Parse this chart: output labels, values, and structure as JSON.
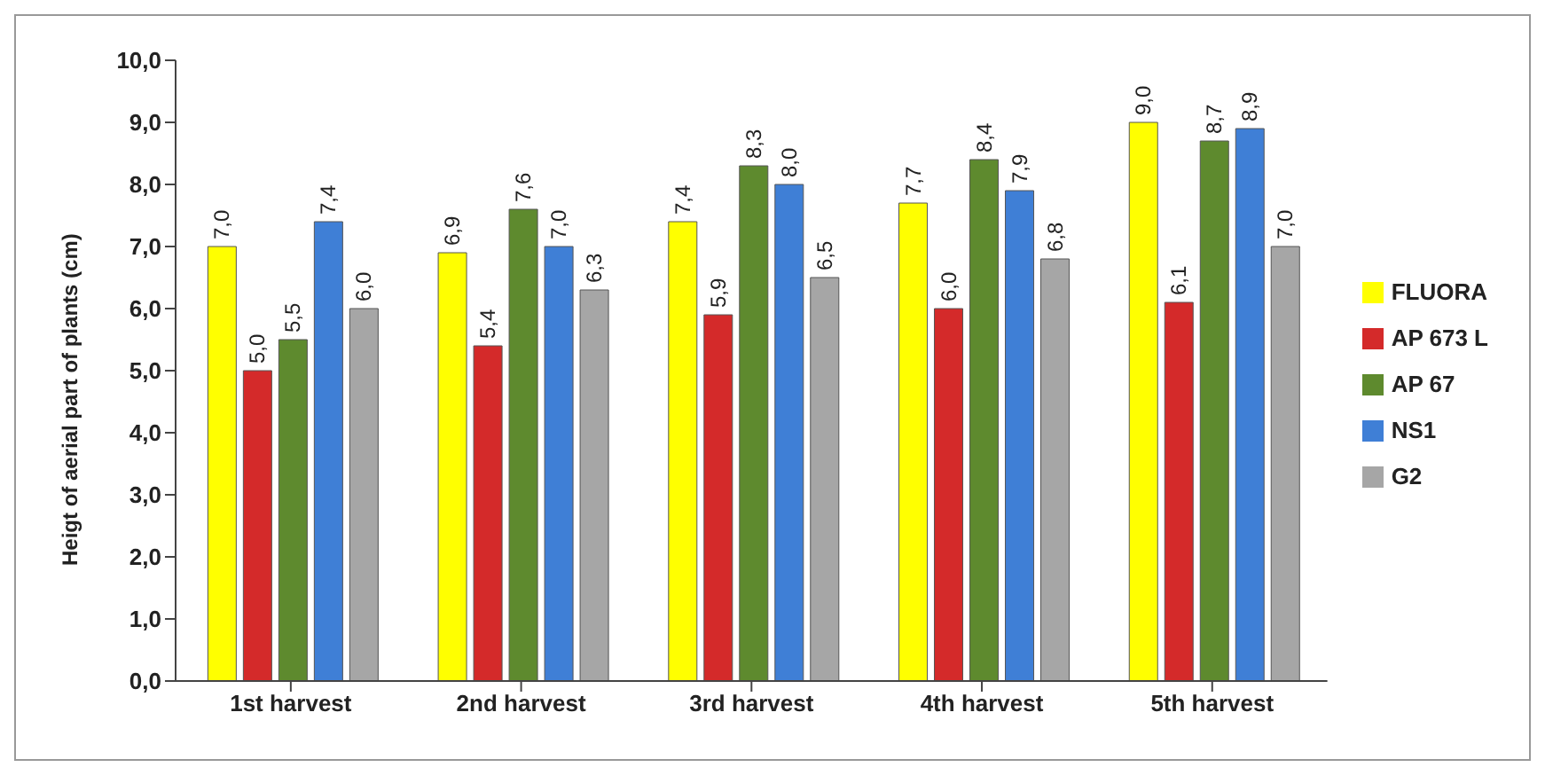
{
  "chart_data": {
    "type": "bar",
    "ylabel": "Heigt of aerial part of plants (cm)",
    "categories": [
      "1st harvest",
      "2nd harvest",
      "3rd harvest",
      "4th harvest",
      "5th harvest"
    ],
    "series": [
      {
        "name": "FLUORA",
        "color": "#ffff00",
        "values": [
          7.0,
          6.9,
          7.4,
          7.7,
          9.0
        ],
        "value_labels": [
          "7,0",
          "6,9",
          "7,4",
          "7,7",
          "9,0"
        ]
      },
      {
        "name": "AP 673 L",
        "color": "#d42a2a",
        "values": [
          5.0,
          5.4,
          5.9,
          6.0,
          6.1
        ],
        "value_labels": [
          "5,0",
          "5,4",
          "5,9",
          "6,0",
          "6,1"
        ]
      },
      {
        "name": "AP 67",
        "color": "#5e8a2e",
        "values": [
          5.5,
          7.6,
          8.3,
          8.4,
          8.7
        ],
        "value_labels": [
          "5,5",
          "7,6",
          "8,3",
          "8,4",
          "8,7"
        ]
      },
      {
        "name": "NS1",
        "color": "#3f7fd6",
        "values": [
          7.4,
          7.0,
          8.0,
          7.9,
          8.9
        ],
        "value_labels": [
          "7,4",
          "7,0",
          "8,0",
          "7,9",
          "8,9"
        ]
      },
      {
        "name": "G2",
        "color": "#a6a6a6",
        "values": [
          6.0,
          6.3,
          6.5,
          6.8,
          7.0
        ],
        "value_labels": [
          "6,0",
          "6,3",
          "6,5",
          "6,8",
          "7,0"
        ]
      }
    ],
    "ylim": [
      0,
      10
    ],
    "yticks": [
      {
        "value": 0,
        "label": "0,0"
      },
      {
        "value": 1,
        "label": "1,0"
      },
      {
        "value": 2,
        "label": "2,0"
      },
      {
        "value": 3,
        "label": "3,0"
      },
      {
        "value": 4,
        "label": "4,0"
      },
      {
        "value": 5,
        "label": "5,0"
      },
      {
        "value": 6,
        "label": "6,0"
      },
      {
        "value": 7,
        "label": "7,0"
      },
      {
        "value": 8,
        "label": "8,0"
      },
      {
        "value": 9,
        "label": "9,0"
      },
      {
        "value": 10,
        "label": "10,0"
      }
    ],
    "grid": false,
    "legend": "right"
  }
}
